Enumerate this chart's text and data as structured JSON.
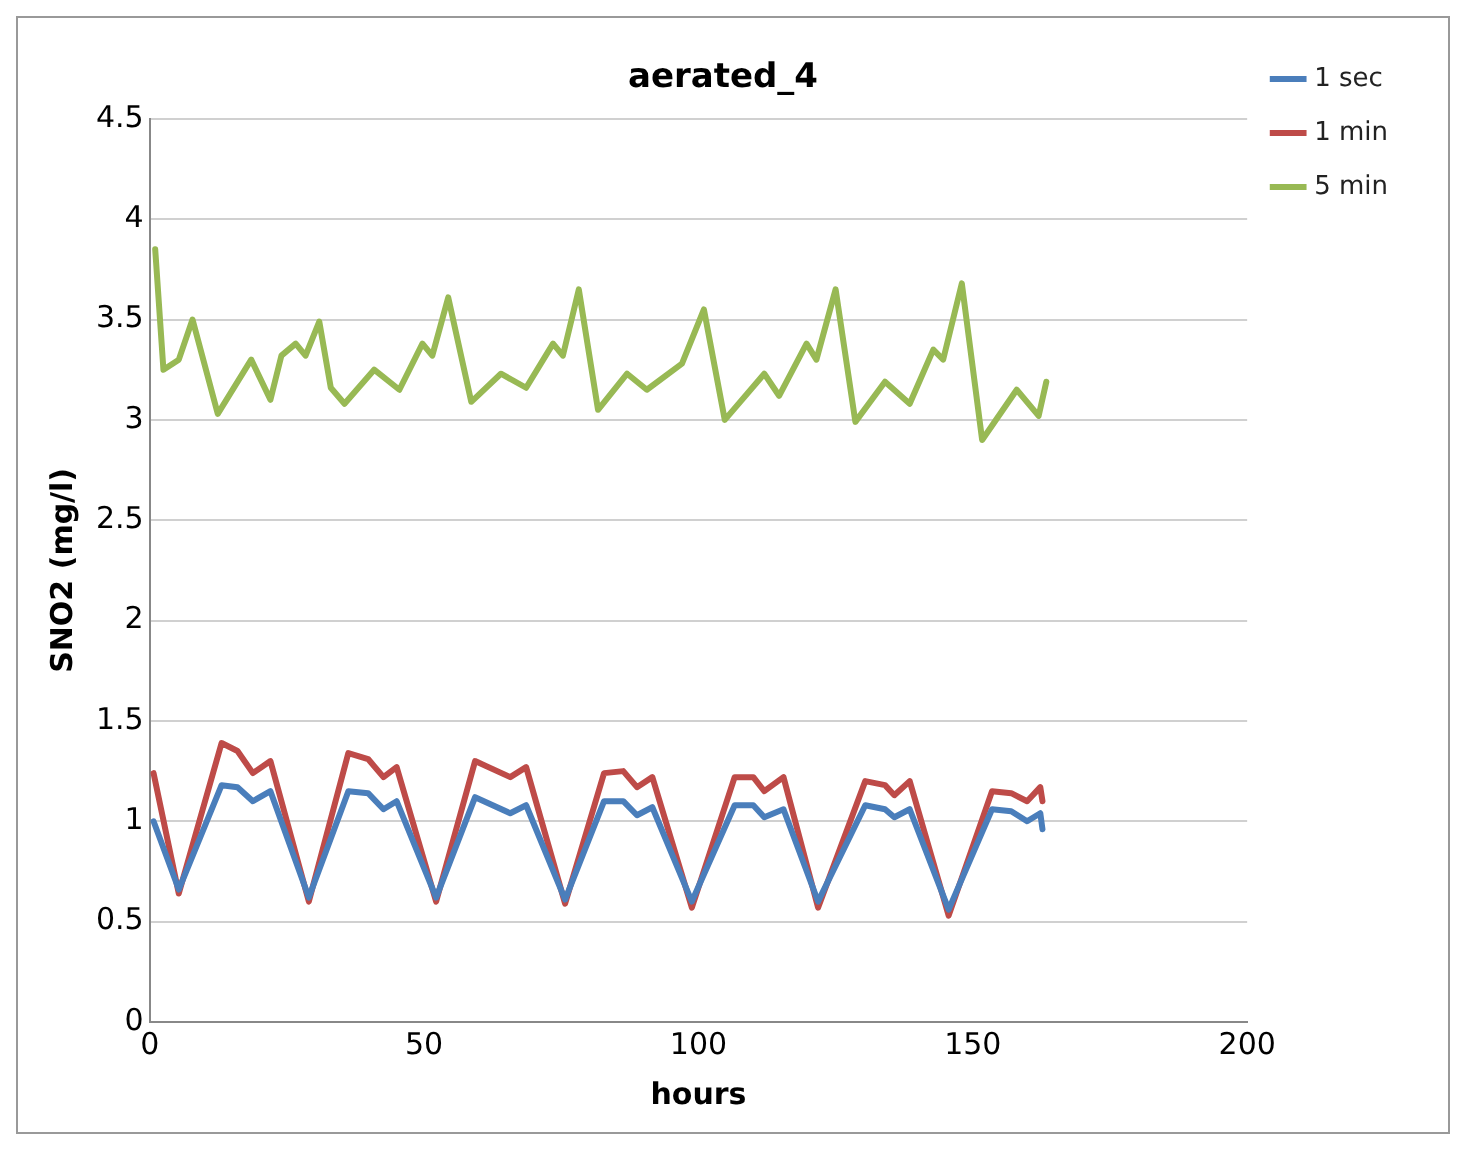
{
  "chart_data": {
    "type": "line",
    "title": "aerated_4",
    "xlabel": "hours",
    "ylabel": "SNO2 (mg/l)",
    "xlim": [
      0,
      200
    ],
    "xticks": [
      0,
      50,
      100,
      150,
      200
    ],
    "ylim": [
      0,
      4.5
    ],
    "yticks": [
      0,
      0.5,
      1,
      1.5,
      2,
      2.5,
      3,
      3.5,
      4,
      4.5
    ],
    "grid": "y",
    "legend": "top right",
    "marker": "none",
    "line_style": "solid",
    "series": [
      {
        "name": "1 sec",
        "color": "#4a7ebb",
        "x": [
          0.7,
          5.3,
          13.1,
          16,
          18.8,
          22,
          29,
          36.2,
          39.8,
          42.6,
          45,
          52.2,
          59.3,
          65.7,
          68.6,
          75.7,
          82.8,
          86.3,
          88.8,
          91.6,
          98.8,
          106.6,
          110,
          112,
          115.5,
          121.8,
          130.4,
          134,
          135.7,
          138.5,
          145.6,
          153.5,
          157,
          159.9,
          162.3,
          162.7
        ],
        "values": [
          1.0,
          0.66,
          1.18,
          1.17,
          1.1,
          1.15,
          0.62,
          1.15,
          1.14,
          1.06,
          1.1,
          0.62,
          1.12,
          1.04,
          1.08,
          0.61,
          1.1,
          1.1,
          1.03,
          1.07,
          0.6,
          1.08,
          1.08,
          1.02,
          1.06,
          0.6,
          1.08,
          1.06,
          1.02,
          1.06,
          0.56,
          1.06,
          1.05,
          1.0,
          1.04,
          0.96
        ]
      },
      {
        "name": "1 min",
        "color": "#be4b48",
        "x": [
          0.7,
          5.3,
          13.1,
          16,
          18.8,
          22,
          29,
          36.2,
          39.8,
          42.6,
          45,
          52.2,
          59.3,
          65.7,
          68.6,
          75.7,
          82.8,
          86.3,
          88.8,
          91.6,
          98.8,
          106.6,
          110,
          112,
          115.5,
          121.8,
          130.4,
          134,
          135.7,
          138.5,
          145.6,
          153.5,
          157,
          159.9,
          162.3,
          162.7
        ],
        "values": [
          1.24,
          0.64,
          1.39,
          1.35,
          1.24,
          1.3,
          0.6,
          1.34,
          1.31,
          1.22,
          1.27,
          0.6,
          1.3,
          1.22,
          1.27,
          0.59,
          1.24,
          1.25,
          1.17,
          1.22,
          0.57,
          1.22,
          1.22,
          1.15,
          1.22,
          0.57,
          1.2,
          1.18,
          1.13,
          1.2,
          0.53,
          1.15,
          1.14,
          1.1,
          1.17,
          1.1
        ]
      },
      {
        "name": "5 min",
        "color": "#98b954",
        "x": [
          1,
          2.5,
          5.3,
          7.8,
          12.4,
          18.5,
          22,
          24,
          26.6,
          28.4,
          30.9,
          33,
          35.5,
          40.9,
          45.5,
          49.7,
          51.5,
          54.4,
          58.6,
          64,
          68.6,
          73.5,
          75.3,
          78.2,
          81.7,
          87,
          90.6,
          97,
          101,
          104.8,
          112,
          114.7,
          119.7,
          121.5,
          125,
          128.6,
          134,
          138.5,
          142.8,
          144.6,
          148,
          151.7,
          158,
          162,
          163.4
        ],
        "values": [
          3.85,
          3.25,
          3.3,
          3.5,
          3.03,
          3.3,
          3.1,
          3.32,
          3.38,
          3.32,
          3.49,
          3.16,
          3.08,
          3.25,
          3.15,
          3.38,
          3.32,
          3.61,
          3.09,
          3.23,
          3.16,
          3.38,
          3.32,
          3.65,
          3.05,
          3.23,
          3.15,
          3.28,
          3.55,
          3.0,
          3.23,
          3.12,
          3.38,
          3.3,
          3.65,
          2.99,
          3.19,
          3.08,
          3.35,
          3.3,
          3.68,
          2.9,
          3.15,
          3.02,
          3.19
        ]
      }
    ]
  }
}
